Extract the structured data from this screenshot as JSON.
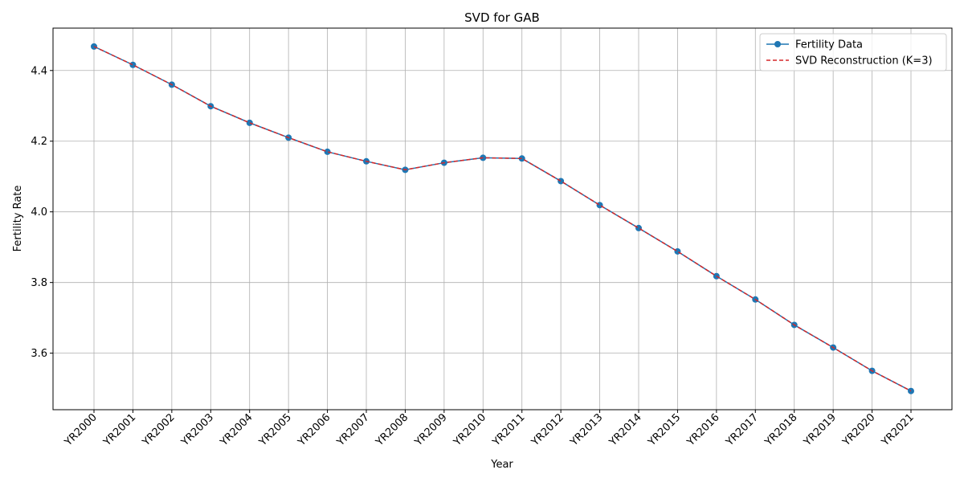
{
  "chart_data": {
    "type": "line",
    "title": "SVD for GAB",
    "xlabel": "Year",
    "ylabel": "Fertility Rate",
    "categories": [
      "YR2000",
      "YR2001",
      "YR2002",
      "YR2003",
      "YR2004",
      "YR2005",
      "YR2006",
      "YR2007",
      "YR2008",
      "YR2009",
      "YR2010",
      "YR2011",
      "YR2012",
      "YR2013",
      "YR2014",
      "YR2015",
      "YR2016",
      "YR2017",
      "YR2018",
      "YR2019",
      "YR2020",
      "YR2021"
    ],
    "yticks": [
      3.6,
      3.8,
      4.0,
      4.2,
      4.4
    ],
    "ytick_labels": [
      "3.6",
      "3.8",
      "4.0",
      "4.2",
      "4.4"
    ],
    "ylim": [
      3.44,
      4.52
    ],
    "grid": true,
    "legend_position": "top-right",
    "series": [
      {
        "name": "Fertility Data",
        "color": "#1f77b4",
        "style": "solid-with-markers",
        "values": [
          4.468,
          4.416,
          4.36,
          4.299,
          4.252,
          4.21,
          4.17,
          4.143,
          4.119,
          4.139,
          4.153,
          4.151,
          4.087,
          4.019,
          3.954,
          3.888,
          3.818,
          3.752,
          3.68,
          3.616,
          3.55,
          3.493
        ]
      },
      {
        "name": "SVD Reconstruction (K=3)",
        "color": "#d62728",
        "style": "dashed",
        "values": [
          4.468,
          4.416,
          4.36,
          4.299,
          4.252,
          4.21,
          4.17,
          4.143,
          4.119,
          4.139,
          4.153,
          4.151,
          4.087,
          4.019,
          3.954,
          3.888,
          3.818,
          3.752,
          3.68,
          3.616,
          3.55,
          3.493
        ]
      }
    ]
  }
}
